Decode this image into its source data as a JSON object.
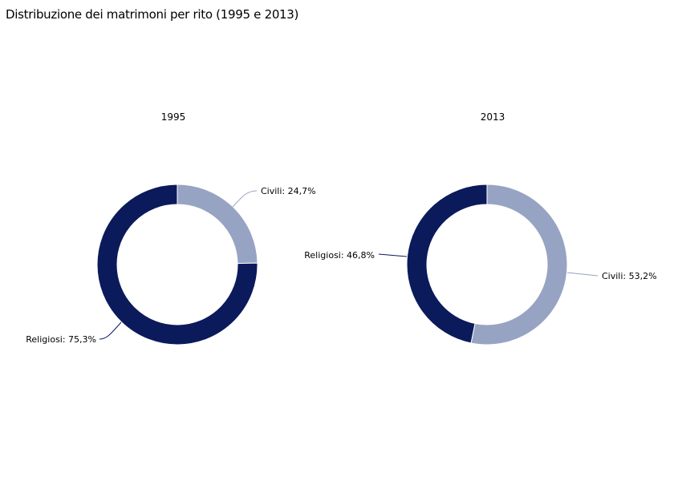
{
  "title": "Distribuzione dei matrimoni per rito (1995 e 2013)",
  "colors": {
    "Civili": "#97a3c3",
    "Religiosi": "#0b1a5b"
  },
  "chart_data": [
    {
      "type": "pie",
      "subtitle": "1995",
      "categories": [
        "Civili",
        "Religiosi"
      ],
      "values": [
        24.7,
        75.3
      ],
      "labels": [
        "Civili: 24,7%",
        "Religiosi: 75,3%"
      ]
    },
    {
      "type": "pie",
      "subtitle": "2013",
      "categories": [
        "Civili",
        "Religiosi"
      ],
      "values": [
        53.2,
        46.8
      ],
      "labels": [
        "Civili: 53,2%",
        "Religiosi: 46,8%"
      ]
    }
  ]
}
